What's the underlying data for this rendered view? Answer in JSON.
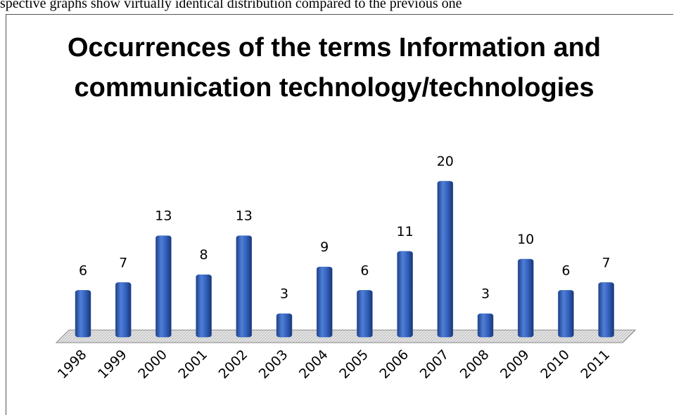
{
  "caption": "spective graphs show virtually identical distribution compared to the previous one",
  "chart_data": {
    "type": "bar",
    "title": "Occurrences of the terms Information and communication technology/technologies",
    "categories": [
      "1998",
      "1999",
      "2000",
      "2001",
      "2002",
      "2003",
      "2004",
      "2005",
      "2006",
      "2007",
      "2008",
      "2009",
      "2010",
      "2011"
    ],
    "values": [
      6,
      7,
      13,
      8,
      13,
      3,
      9,
      6,
      11,
      20,
      3,
      10,
      6,
      7
    ],
    "color": "#3564c0"
  }
}
